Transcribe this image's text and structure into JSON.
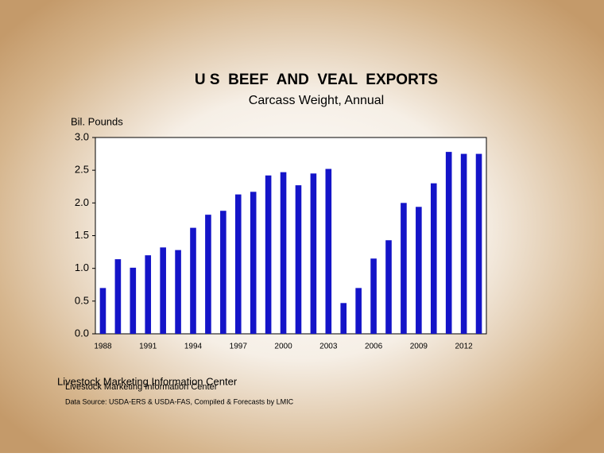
{
  "chart_data": {
    "type": "bar",
    "title": "U S  BEEF  AND  VEAL  EXPORTS",
    "subtitle": "Carcass Weight, Annual",
    "y_label": "Bil. Pounds",
    "categories": [
      "1988",
      null,
      null,
      "1991",
      null,
      null,
      "1994",
      null,
      null,
      "1997",
      null,
      null,
      "2000",
      null,
      null,
      "2003",
      null,
      null,
      "2006",
      null,
      null,
      "2009",
      null,
      null,
      "2012",
      null
    ],
    "values": [
      0.7,
      1.14,
      1.01,
      1.2,
      1.32,
      1.28,
      1.62,
      1.82,
      1.88,
      2.13,
      2.17,
      2.42,
      2.47,
      2.27,
      2.45,
      2.52,
      0.47,
      0.7,
      1.15,
      1.43,
      2.0,
      1.94,
      2.3,
      2.78,
      2.75,
      2.75
    ],
    "color": "#1414c8",
    "ylim": [
      0,
      3
    ],
    "yticks": [
      {
        "value": 0,
        "label": "0.0"
      },
      0.5,
      {
        "value": 1,
        "label": "1.0"
      },
      1.5,
      {
        "value": 2,
        "label": "2.0"
      },
      2.5,
      {
        "value": 3,
        "label": "3.0"
      }
    ],
    "source": "Livestock Marketing Information Center",
    "note": "Data Source:  USDA-ERS & USDA-FAS, Compiled & Forecasts by LMIC"
  }
}
